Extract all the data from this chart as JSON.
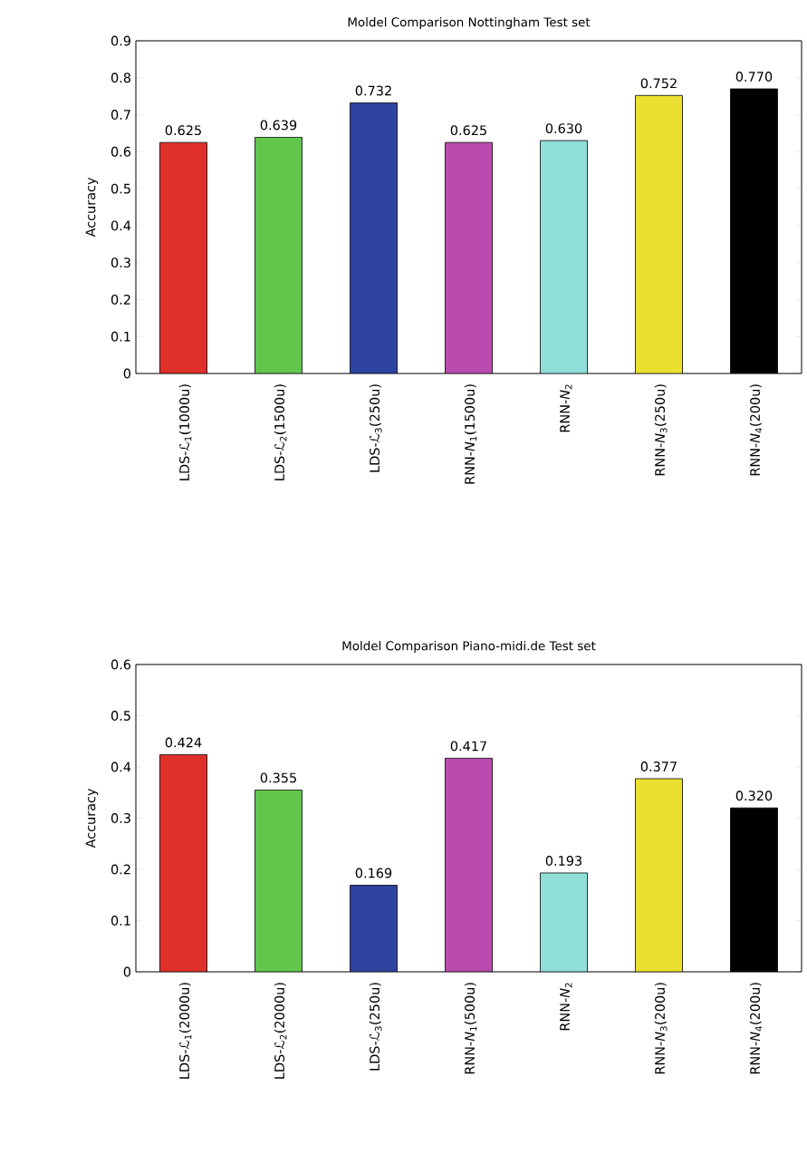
{
  "chart_data": [
    {
      "type": "bar",
      "title": "Moldel Comparison Nottingham Test set",
      "ylabel": "Accuracy",
      "categories": [
        "LDS-ℒ$_{1}$(1000u)",
        "LDS-ℒ$_{2}$(1500u)",
        "LDS-ℒ$_{3}$(250u)",
        "RNN-*N*$_{1}$(1500u)",
        "RNN-*N*$_{2}$",
        "RNN-*N*$_{3}$(250u)",
        "RNN-*N*$_{4}$(200u)"
      ],
      "values": [
        0.625,
        0.639,
        0.732,
        0.625,
        0.63,
        0.752,
        0.77
      ],
      "value_labels": [
        "0.625",
        "0.639",
        "0.732",
        "0.625",
        "0.630",
        "0.752",
        "0.770"
      ],
      "colors": [
        "#e0302a",
        "#62c64d",
        "#2f44a0",
        "#bb4aae",
        "#8fdfd8",
        "#ebe030",
        "#000000"
      ],
      "ylim": [
        0,
        0.9
      ],
      "yticks": [
        0,
        0.1,
        0.2,
        0.3,
        0.4,
        0.5,
        0.6,
        0.7,
        0.8,
        0.9
      ]
    },
    {
      "type": "bar",
      "title": "Moldel Comparison Piano-midi.de Test set",
      "ylabel": "Accuracy",
      "categories": [
        "LDS-ℒ$_{1}$(2000u)",
        "LDS-ℒ$_{2}$(2000u)",
        "LDS-ℒ$_{3}$(250u)",
        "RNN-*N*$_{1}$(500u)",
        "RNN-*N*$_{2}$",
        "RNN-*N*$_{3}$(200u)",
        "RNN-*N*$_{4}$(200u)"
      ],
      "values": [
        0.424,
        0.355,
        0.169,
        0.417,
        0.193,
        0.377,
        0.32
      ],
      "value_labels": [
        "0.424",
        "0.355",
        "0.169",
        "0.417",
        "0.193",
        "0.377",
        "0.320"
      ],
      "colors": [
        "#e0302a",
        "#62c64d",
        "#2f44a0",
        "#bb4aae",
        "#8fdfd8",
        "#ebe030",
        "#000000"
      ],
      "ylim": [
        0,
        0.6
      ],
      "yticks": [
        0,
        0.1,
        0.2,
        0.3,
        0.4,
        0.5,
        0.6
      ]
    }
  ]
}
